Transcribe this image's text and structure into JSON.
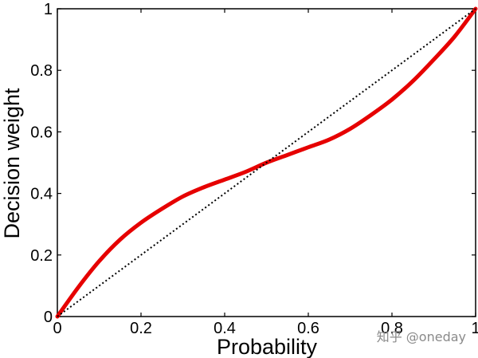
{
  "chart_data": {
    "type": "line",
    "title": "",
    "xlabel": "Probability",
    "ylabel": "Decision weight",
    "xlim": [
      0,
      1
    ],
    "ylim": [
      0,
      1
    ],
    "grid": false,
    "x_ticks": [
      "0",
      "0.2",
      "0.4",
      "0.6",
      "0.8",
      "1"
    ],
    "y_ticks": [
      "0",
      "0.2",
      "0.4",
      "0.6",
      "0.8",
      "1"
    ],
    "series": [
      {
        "style": "solid",
        "color": "#e60000",
        "x": [
          0,
          0.05,
          0.1,
          0.15,
          0.2,
          0.25,
          0.3,
          0.35,
          0.4,
          0.45,
          0.5,
          0.55,
          0.6,
          0.65,
          0.7,
          0.75,
          0.8,
          0.85,
          0.9,
          0.95,
          1.0
        ],
        "y": [
          0,
          0.095,
          0.18,
          0.25,
          0.305,
          0.35,
          0.39,
          0.42,
          0.445,
          0.47,
          0.5,
          0.525,
          0.55,
          0.575,
          0.61,
          0.655,
          0.705,
          0.765,
          0.835,
          0.91,
          1.0
        ]
      },
      {
        "style": "dotted",
        "color": "#000000",
        "x": [
          0,
          1
        ],
        "y": [
          0,
          1
        ]
      }
    ]
  },
  "watermark": "知乎 @oneday"
}
